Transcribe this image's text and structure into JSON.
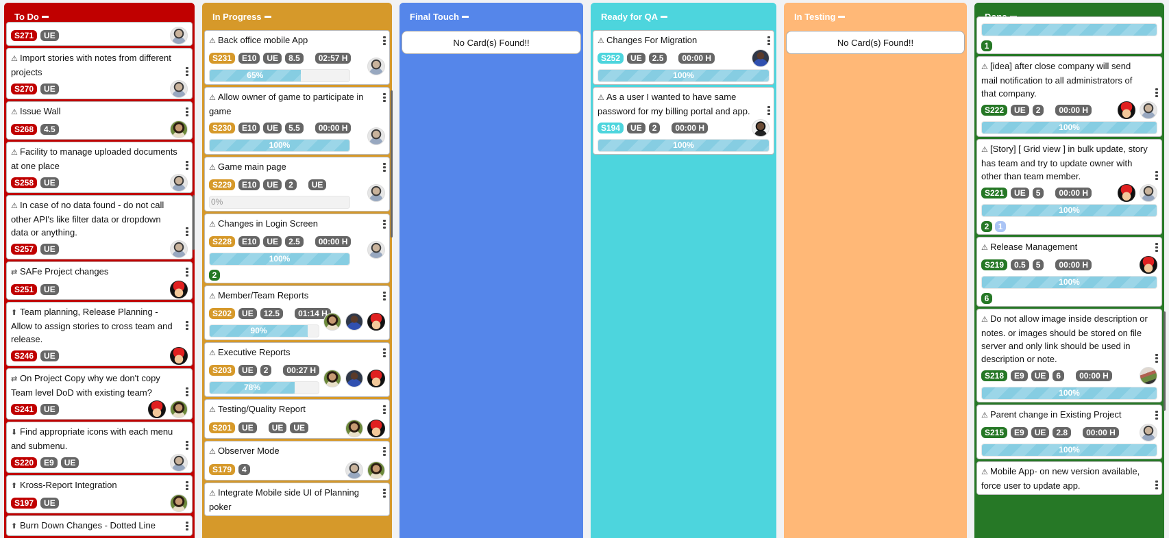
{
  "colors": {
    "todo": "#c00000",
    "in_progress": "#d6992a",
    "final_touch": "#5586ea",
    "ready_for_qa": "#4dd5dd",
    "in_testing": "#ffb877",
    "done": "#267826",
    "tag_gray": "#666666",
    "count_green": "#267826",
    "count_lightblue": "#aac4f5"
  },
  "empty_text": "No Card(s) Found!!",
  "columns": [
    {
      "key": "todo",
      "title": "To Do",
      "color": "#c00000",
      "cards": [
        {
          "id": "S271",
          "tags": [
            "UE"
          ],
          "avatars": [
            "man1"
          ]
        },
        {
          "icon": "warning",
          "title": "Import stories with notes from different projects",
          "id": "S270",
          "tags": [
            "UE"
          ],
          "avatars": [
            "man1"
          ]
        },
        {
          "icon": "warning",
          "title": "Issue Wall",
          "id": "S268",
          "tags": [
            "4.5"
          ],
          "avatars": [
            "woman"
          ]
        },
        {
          "icon": "warning",
          "title": "Facility to manage uploaded documents at one place",
          "id": "S258",
          "tags": [
            "UE"
          ],
          "avatars": [
            "man1"
          ]
        },
        {
          "icon": "warning",
          "title": "In case of no data found - do not call other API's like filter data or dropdown data or anything.",
          "id": "S257",
          "tags": [
            "UE"
          ],
          "avatars": [
            "man1"
          ]
        },
        {
          "icon": "swap",
          "title": "SAFe Project changes",
          "id": "S251",
          "tags": [
            "UE"
          ],
          "avatars": [
            "mario"
          ]
        },
        {
          "icon": "arrow-up-circle",
          "title": "Team planning, Release Planning - Allow to assign stories to cross team and release.",
          "id": "S246",
          "tags": [
            "UE"
          ],
          "avatars": [
            "mario"
          ]
        },
        {
          "icon": "swap",
          "title": "On Project Copy why we don't copy Team level DoD with existing team?",
          "id": "S241",
          "tags": [
            "UE"
          ],
          "avatars": [
            "mario",
            "woman"
          ]
        },
        {
          "icon": "arrow-down-circle",
          "title": "Find appropriate icons with each menu and submenu.",
          "id": "S220",
          "tags": [
            "E9",
            "UE"
          ],
          "avatars": [
            "man1"
          ]
        },
        {
          "icon": "arrow-up-circle",
          "title": "Kross-Report Integration",
          "id": "S197",
          "tags": [
            "UE"
          ],
          "avatars": [
            "woman"
          ]
        },
        {
          "icon": "arrow-up-circle",
          "title": "Burn Down Changes - Dotted Line"
        }
      ]
    },
    {
      "key": "in_progress",
      "title": "In Progress",
      "color": "#d6992a",
      "cards": [
        {
          "icon": "warning",
          "title": "Back office mobile App",
          "id": "S231",
          "tags": [
            "E10",
            "UE",
            "8.5"
          ],
          "time": "02:57 H",
          "progress": 65,
          "progress_label": "65%",
          "avatars": [
            "man1"
          ]
        },
        {
          "icon": "warning",
          "title": "Allow owner of game to participate in game",
          "id": "S230",
          "tags": [
            "E10",
            "UE",
            "5.5"
          ],
          "time": "00:00 H",
          "progress": 100,
          "progress_label": "100%",
          "avatars": [
            "man1"
          ]
        },
        {
          "icon": "warning",
          "title": "Game main page",
          "id": "S229",
          "tags": [
            "E10",
            "UE",
            "2"
          ],
          "time": "UE",
          "progress": 0,
          "progress_label": "0%",
          "avatars": [
            "man1"
          ]
        },
        {
          "icon": "warning",
          "title": "Changes in Login Screen",
          "id": "S228",
          "tags": [
            "E10",
            "UE",
            "2.5"
          ],
          "time": "00:00 H",
          "progress": 100,
          "progress_label": "100%",
          "avatars": [
            "man1"
          ],
          "counts": [
            {
              "value": "2",
              "color": "#267826"
            }
          ]
        },
        {
          "icon": "warning",
          "title": "Member/Team Reports",
          "id": "S202",
          "tags": [
            "UE",
            "12.5"
          ],
          "time": "01:14 H",
          "progress": 90,
          "progress_label": "90%",
          "avatars": [
            "woman",
            "man2",
            "mario"
          ]
        },
        {
          "icon": "warning",
          "title": "Executive Reports",
          "id": "S203",
          "tags": [
            "UE",
            "2"
          ],
          "time": "00:27 H",
          "progress": 78,
          "progress_label": "78%",
          "avatars": [
            "woman",
            "man2",
            "mario"
          ]
        },
        {
          "icon": "warning",
          "title": "Testing/Quality Report",
          "id": "S201",
          "tags": [
            "UE"
          ],
          "time": "UE",
          "extra": "UE",
          "avatars": [
            "woman",
            "mario"
          ]
        },
        {
          "icon": "warning",
          "title": "Observer Mode",
          "id": "S179",
          "tags": [
            "4"
          ],
          "avatars": [
            "man1",
            "woman"
          ]
        },
        {
          "icon": "warning",
          "title": "Integrate Mobile side UI of Planning poker"
        }
      ]
    },
    {
      "key": "final_touch",
      "title": "Final Touch",
      "color": "#5586ea",
      "cards": []
    },
    {
      "key": "ready_for_qa",
      "title": "Ready for QA",
      "color": "#4dd5dd",
      "cards": [
        {
          "icon": "warning",
          "title": "Changes For Migration",
          "id": "S252",
          "tags": [
            "UE",
            "2.5"
          ],
          "time": "00:00 H",
          "progress": 100,
          "progress_label": "100%",
          "avatars": [
            "man2"
          ]
        },
        {
          "icon": "warning",
          "title": "As a user I wanted to have same password for my billing portal and app.",
          "id": "S194",
          "tags": [
            "UE",
            "2"
          ],
          "time": "00:00 H",
          "progress": 100,
          "progress_label": "100%",
          "avatars": [
            "man3"
          ]
        }
      ]
    },
    {
      "key": "in_testing",
      "title": "In Testing",
      "color": "#ffb877",
      "cards": []
    },
    {
      "key": "done",
      "title": "Done",
      "color": "#267826",
      "cards": [
        {
          "progress": 100,
          "progress_label": "",
          "counts": [
            {
              "value": "1",
              "color": "#267826"
            }
          ]
        },
        {
          "icon": "warning",
          "title": "[idea] after close company will send mail notification to all administrators of that company.",
          "id": "S222",
          "tags": [
            "UE",
            "2"
          ],
          "time": "00:00 H",
          "progress": 100,
          "progress_label": "100%",
          "avatars": [
            "mario",
            "man1"
          ]
        },
        {
          "icon": "warning",
          "title": "[Story] [ Grid view ] in bulk update, story has team and try to update owner with other than team member.",
          "id": "S221",
          "tags": [
            "UE",
            "5"
          ],
          "time": "00:00 H",
          "progress": 100,
          "progress_label": "100%",
          "avatars": [
            "mario",
            "man1"
          ],
          "counts": [
            {
              "value": "2",
              "color": "#267826"
            },
            {
              "value": "1",
              "color": "#aac4f5"
            }
          ]
        },
        {
          "icon": "warning",
          "title": "Release Management",
          "id": "S219",
          "tags": [
            "0.5",
            "5"
          ],
          "time": "00:00 H",
          "progress": 100,
          "progress_label": "100%",
          "avatars": [
            "mario"
          ],
          "counts": [
            {
              "value": "6",
              "color": "#267826"
            }
          ]
        },
        {
          "icon": "warning",
          "title": "Do not allow image inside description or notes. or images should be stored on file server and only link should be used in description or note.",
          "id": "S218",
          "tags": [
            "E9",
            "UE",
            "6"
          ],
          "time": "00:00 H",
          "progress": 100,
          "progress_label": "100%",
          "avatars": [
            "land"
          ]
        },
        {
          "icon": "warning",
          "title": "Parent change in Existing Project",
          "id": "S215",
          "tags": [
            "E9",
            "UE",
            "2.8"
          ],
          "time": "00:00 H",
          "progress": 100,
          "progress_label": "100%",
          "avatars": [
            "man1"
          ]
        },
        {
          "icon": "warning",
          "title": "Mobile App- on new version available, force user to update app.",
          "avatars": [
            "man2"
          ]
        }
      ]
    }
  ]
}
